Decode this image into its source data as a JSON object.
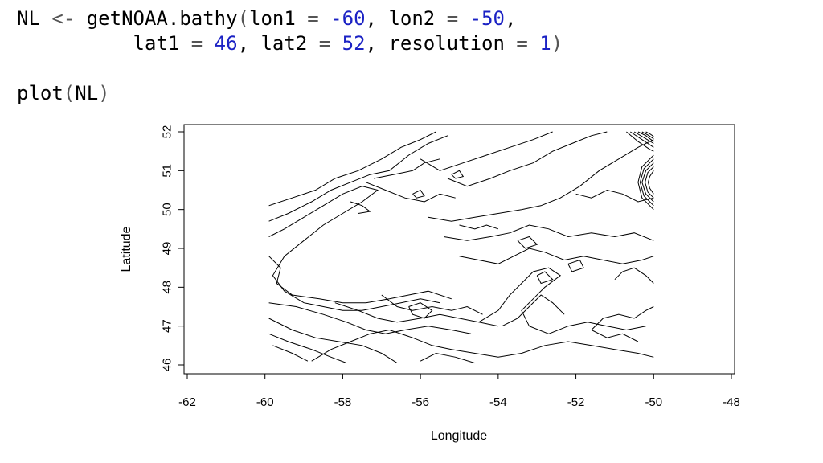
{
  "code": {
    "line1": {
      "var": "NL",
      "assign": "<-",
      "func": "getNOAA.bathy",
      "open": "(",
      "p1": "lon1",
      "eq1": "=",
      "v1": "-60",
      "c1": ",",
      "p2": "lon2",
      "eq2": "=",
      "v2": "-50",
      "c2": ","
    },
    "line2": {
      "p3": "lat1",
      "eq3": "=",
      "v3": "46",
      "c3": ",",
      "p4": "lat2",
      "eq4": "=",
      "v4": "52",
      "c4": ",",
      "p5": "resolution",
      "eq5": "=",
      "v5": "1",
      "close": ")"
    },
    "line3": {
      "func": "plot",
      "open": "(",
      "arg": "NL",
      "close": ")"
    }
  },
  "colors": {
    "code_number": "#1b22c4",
    "code_operator": "#555555",
    "contour": "#000000"
  },
  "chart_data": {
    "type": "contour",
    "xlabel": "Longitude",
    "ylabel": "Latitude",
    "xlim": [
      -62,
      -48
    ],
    "ylim": [
      46,
      52
    ],
    "xticks": [
      -62,
      -60,
      -58,
      -56,
      -54,
      -52,
      -50,
      -48
    ],
    "yticks": [
      46,
      47,
      48,
      49,
      50,
      51,
      52
    ],
    "data_extent": {
      "lon": [
        -60,
        -50
      ],
      "lat": [
        46,
        52
      ]
    },
    "grid": false,
    "legend": "none",
    "contours": [
      [
        [
          -59.9,
          49.3
        ],
        [
          -59.5,
          49.5
        ],
        [
          -59.0,
          49.8
        ],
        [
          -58.5,
          50.1
        ],
        [
          -58.0,
          50.4
        ],
        [
          -57.5,
          50.6
        ],
        [
          -57.1,
          50.5
        ],
        [
          -57.5,
          50.2
        ],
        [
          -58.0,
          49.9
        ],
        [
          -58.5,
          49.6
        ],
        [
          -59.0,
          49.2
        ],
        [
          -59.5,
          48.8
        ],
        [
          -59.8,
          48.3
        ],
        [
          -59.5,
          47.9
        ],
        [
          -59.0,
          47.6
        ],
        [
          -58.5,
          47.5
        ],
        [
          -58.0,
          47.4
        ],
        [
          -57.5,
          47.4
        ],
        [
          -57.0,
          47.5
        ],
        [
          -56.5,
          47.6
        ],
        [
          -56.0,
          47.7
        ],
        [
          -55.5,
          47.6
        ]
      ],
      [
        [
          -59.9,
          49.7
        ],
        [
          -59.4,
          49.9
        ],
        [
          -58.8,
          50.2
        ],
        [
          -58.3,
          50.5
        ],
        [
          -57.8,
          50.7
        ],
        [
          -57.3,
          50.9
        ],
        [
          -56.8,
          51.0
        ],
        [
          -56.3,
          51.4
        ],
        [
          -55.8,
          51.7
        ],
        [
          -55.3,
          51.9
        ]
      ],
      [
        [
          -59.9,
          50.1
        ],
        [
          -59.3,
          50.3
        ],
        [
          -58.7,
          50.5
        ],
        [
          -58.2,
          50.8
        ],
        [
          -57.6,
          51.0
        ],
        [
          -57.0,
          51.3
        ],
        [
          -56.5,
          51.6
        ],
        [
          -56.0,
          51.8
        ],
        [
          -55.6,
          52.0
        ]
      ],
      [
        [
          -59.9,
          48.8
        ],
        [
          -59.6,
          48.5
        ],
        [
          -59.7,
          48.1
        ],
        [
          -59.3,
          47.8
        ],
        [
          -58.6,
          47.7
        ],
        [
          -58.0,
          47.6
        ],
        [
          -57.4,
          47.6
        ],
        [
          -56.8,
          47.7
        ],
        [
          -56.3,
          47.8
        ],
        [
          -55.8,
          47.9
        ],
        [
          -55.2,
          47.7
        ]
      ],
      [
        [
          -59.9,
          47.2
        ],
        [
          -59.3,
          46.9
        ],
        [
          -58.7,
          46.7
        ],
        [
          -58.1,
          46.6
        ],
        [
          -57.5,
          46.5
        ],
        [
          -57.0,
          46.3
        ],
        [
          -56.6,
          46.05
        ]
      ],
      [
        [
          -59.9,
          46.8
        ],
        [
          -59.4,
          46.6
        ],
        [
          -58.8,
          46.4
        ],
        [
          -58.3,
          46.2
        ],
        [
          -57.9,
          46.05
        ]
      ],
      [
        [
          -59.8,
          46.5
        ],
        [
          -59.3,
          46.3
        ],
        [
          -58.9,
          46.1
        ]
      ],
      [
        [
          -59.9,
          47.6
        ],
        [
          -59.2,
          47.5
        ],
        [
          -58.5,
          47.3
        ],
        [
          -57.9,
          47.1
        ],
        [
          -57.4,
          46.9
        ],
        [
          -56.9,
          46.8
        ],
        [
          -56.4,
          46.9
        ],
        [
          -55.8,
          47.0
        ],
        [
          -55.2,
          46.9
        ],
        [
          -54.7,
          46.8
        ]
      ],
      [
        [
          -58.2,
          47.6
        ],
        [
          -57.6,
          47.4
        ],
        [
          -57.1,
          47.2
        ],
        [
          -56.6,
          47.1
        ],
        [
          -56.0,
          47.2
        ],
        [
          -55.5,
          47.3
        ],
        [
          -55.0,
          47.2
        ],
        [
          -54.5,
          47.1
        ],
        [
          -54.0,
          47.0
        ]
      ],
      [
        [
          -57.0,
          47.8
        ],
        [
          -56.6,
          47.5
        ],
        [
          -56.2,
          47.4
        ],
        [
          -55.7,
          47.5
        ],
        [
          -55.2,
          47.4
        ],
        [
          -54.8,
          47.5
        ],
        [
          -54.4,
          47.3
        ]
      ],
      [
        [
          -58.8,
          46.1
        ],
        [
          -58.3,
          46.4
        ],
        [
          -57.8,
          46.6
        ],
        [
          -57.3,
          46.8
        ],
        [
          -56.8,
          46.9
        ],
        [
          -56.2,
          46.7
        ],
        [
          -55.7,
          46.5
        ],
        [
          -55.2,
          46.4
        ],
        [
          -54.6,
          46.3
        ],
        [
          -54.0,
          46.2
        ],
        [
          -53.4,
          46.3
        ],
        [
          -52.8,
          46.5
        ],
        [
          -52.2,
          46.6
        ],
        [
          -51.6,
          46.5
        ],
        [
          -51.0,
          46.4
        ],
        [
          -50.4,
          46.3
        ],
        [
          -50.0,
          46.2
        ]
      ],
      [
        [
          -56.0,
          46.1
        ],
        [
          -55.6,
          46.3
        ],
        [
          -55.1,
          46.2
        ],
        [
          -54.6,
          46.05
        ]
      ],
      [
        [
          -54.5,
          47.1
        ],
        [
          -54.0,
          47.4
        ],
        [
          -53.7,
          47.8
        ],
        [
          -53.4,
          48.1
        ],
        [
          -53.1,
          48.4
        ],
        [
          -52.7,
          48.5
        ],
        [
          -52.4,
          48.3
        ],
        [
          -52.8,
          48.0
        ],
        [
          -53.1,
          47.7
        ],
        [
          -53.4,
          47.4
        ],
        [
          -53.2,
          47.0
        ],
        [
          -52.7,
          46.8
        ],
        [
          -52.2,
          47.0
        ],
        [
          -51.7,
          47.1
        ],
        [
          -51.2,
          47.0
        ],
        [
          -50.7,
          46.9
        ],
        [
          -50.2,
          47.0
        ]
      ],
      [
        [
          -53.9,
          47.0
        ],
        [
          -53.5,
          47.2
        ],
        [
          -53.2,
          47.5
        ],
        [
          -52.9,
          47.8
        ],
        [
          -52.6,
          47.6
        ],
        [
          -52.3,
          47.3
        ]
      ],
      [
        [
          -55.0,
          48.8
        ],
        [
          -54.5,
          48.7
        ],
        [
          -54.0,
          48.6
        ],
        [
          -53.6,
          48.8
        ],
        [
          -53.2,
          49.0
        ],
        [
          -52.8,
          48.9
        ],
        [
          -52.3,
          48.7
        ],
        [
          -51.8,
          48.8
        ],
        [
          -51.3,
          48.7
        ],
        [
          -50.8,
          48.6
        ],
        [
          -50.3,
          48.7
        ],
        [
          -50.0,
          48.8
        ]
      ],
      [
        [
          -55.4,
          49.3
        ],
        [
          -54.8,
          49.2
        ],
        [
          -54.2,
          49.3
        ],
        [
          -53.7,
          49.4
        ],
        [
          -53.2,
          49.6
        ],
        [
          -52.7,
          49.5
        ],
        [
          -52.2,
          49.3
        ],
        [
          -51.6,
          49.4
        ],
        [
          -51.0,
          49.3
        ],
        [
          -50.5,
          49.4
        ],
        [
          -50.0,
          49.2
        ]
      ],
      [
        [
          -55.8,
          49.8
        ],
        [
          -55.2,
          49.7
        ],
        [
          -54.6,
          49.8
        ],
        [
          -54.0,
          49.9
        ],
        [
          -53.4,
          50.0
        ],
        [
          -52.9,
          50.1
        ],
        [
          -52.4,
          50.3
        ],
        [
          -51.9,
          50.6
        ],
        [
          -51.4,
          51.0
        ],
        [
          -50.9,
          51.3
        ],
        [
          -50.4,
          51.6
        ],
        [
          -50.0,
          51.8
        ]
      ],
      [
        [
          -55.3,
          50.8
        ],
        [
          -54.8,
          50.6
        ],
        [
          -54.2,
          50.8
        ],
        [
          -53.7,
          51.0
        ],
        [
          -53.1,
          51.2
        ],
        [
          -52.6,
          51.5
        ],
        [
          -52.1,
          51.7
        ],
        [
          -51.6,
          51.9
        ],
        [
          -51.2,
          52.0
        ]
      ],
      [
        [
          -56.0,
          51.3
        ],
        [
          -55.5,
          51.0
        ],
        [
          -54.9,
          51.2
        ],
        [
          -54.3,
          51.4
        ],
        [
          -53.7,
          51.6
        ],
        [
          -53.1,
          51.8
        ],
        [
          -52.6,
          52.0
        ]
      ],
      [
        [
          -57.4,
          50.7
        ],
        [
          -56.9,
          50.5
        ],
        [
          -56.4,
          50.3
        ],
        [
          -55.9,
          50.2
        ],
        [
          -55.5,
          50.4
        ],
        [
          -55.1,
          50.3
        ]
      ],
      [
        [
          -57.2,
          50.8
        ],
        [
          -56.7,
          50.9
        ],
        [
          -56.2,
          51.0
        ],
        [
          -55.9,
          51.2
        ],
        [
          -55.5,
          51.3
        ]
      ],
      [
        [
          -55.0,
          49.6
        ],
        [
          -54.6,
          49.5
        ],
        [
          -54.3,
          49.6
        ],
        [
          -54.0,
          49.5
        ]
      ],
      [
        [
          -51.0,
          48.2
        ],
        [
          -50.8,
          48.4
        ],
        [
          -50.5,
          48.5
        ],
        [
          -50.2,
          48.3
        ],
        [
          -50.0,
          48.1
        ]
      ],
      [
        [
          -50.4,
          46.6
        ],
        [
          -50.8,
          46.8
        ],
        [
          -51.2,
          46.7
        ],
        [
          -51.6,
          46.9
        ],
        [
          -51.3,
          47.2
        ],
        [
          -50.9,
          47.3
        ],
        [
          -50.5,
          47.2
        ],
        [
          -50.2,
          47.4
        ],
        [
          -50.0,
          47.5
        ]
      ],
      [
        [
          -52.0,
          50.4
        ],
        [
          -51.6,
          50.3
        ],
        [
          -51.2,
          50.5
        ],
        [
          -50.8,
          50.4
        ],
        [
          -50.4,
          50.2
        ],
        [
          -50.0,
          50.3
        ]
      ],
      [
        [
          -50.0,
          51.4
        ],
        [
          -50.3,
          51.1
        ],
        [
          -50.4,
          50.7
        ],
        [
          -50.3,
          50.3
        ],
        [
          -50.0,
          50.0
        ]
      ],
      [
        [
          -50.0,
          51.3
        ],
        [
          -50.25,
          51.05
        ],
        [
          -50.35,
          50.7
        ],
        [
          -50.25,
          50.35
        ],
        [
          -50.0,
          50.1
        ]
      ],
      [
        [
          -50.0,
          51.2
        ],
        [
          -50.2,
          51.0
        ],
        [
          -50.3,
          50.7
        ],
        [
          -50.2,
          50.4
        ],
        [
          -50.0,
          50.2
        ]
      ],
      [
        [
          -50.0,
          51.1
        ],
        [
          -50.15,
          50.95
        ],
        [
          -50.22,
          50.7
        ],
        [
          -50.15,
          50.45
        ],
        [
          -50.0,
          50.3
        ]
      ],
      [
        [
          -50.0,
          51.0
        ],
        [
          -50.1,
          50.85
        ],
        [
          -50.14,
          50.7
        ],
        [
          -50.1,
          50.55
        ],
        [
          -50.0,
          50.4
        ]
      ],
      [
        [
          -50.6,
          52.0
        ],
        [
          -50.3,
          51.8
        ],
        [
          -50.0,
          51.6
        ]
      ],
      [
        [
          -50.5,
          52.0
        ],
        [
          -50.25,
          51.85
        ],
        [
          -50.0,
          51.7
        ]
      ],
      [
        [
          -50.4,
          52.0
        ],
        [
          -50.2,
          51.9
        ],
        [
          -50.0,
          51.75
        ]
      ],
      [
        [
          -50.3,
          52.0
        ],
        [
          -50.15,
          51.92
        ],
        [
          -50.0,
          51.82
        ]
      ],
      [
        [
          -50.2,
          52.0
        ],
        [
          -50.1,
          51.95
        ],
        [
          -50.0,
          51.88
        ]
      ],
      [
        [
          -50.7,
          52.0
        ],
        [
          -50.4,
          51.75
        ],
        [
          -50.1,
          51.55
        ],
        [
          -50.0,
          51.5
        ]
      ],
      [
        [
          -56.3,
          47.5
        ],
        [
          -56.0,
          47.6
        ],
        [
          -55.7,
          47.4
        ],
        [
          -55.9,
          47.2
        ],
        [
          -56.2,
          47.3
        ],
        [
          -56.3,
          47.5
        ]
      ],
      [
        [
          -53.5,
          49.2
        ],
        [
          -53.2,
          49.3
        ],
        [
          -53.0,
          49.1
        ],
        [
          -53.3,
          49.0
        ],
        [
          -53.5,
          49.2
        ]
      ],
      [
        [
          -57.8,
          50.2
        ],
        [
          -57.5,
          50.1
        ],
        [
          -57.3,
          49.95
        ],
        [
          -57.6,
          49.9
        ]
      ],
      [
        [
          -56.2,
          50.4
        ],
        [
          -56.0,
          50.5
        ],
        [
          -55.9,
          50.35
        ],
        [
          -56.1,
          50.3
        ],
        [
          -56.2,
          50.4
        ]
      ],
      [
        [
          -55.2,
          50.9
        ],
        [
          -55.0,
          51.0
        ],
        [
          -54.9,
          50.85
        ],
        [
          -55.1,
          50.8
        ],
        [
          -55.2,
          50.9
        ]
      ],
      [
        [
          -53.0,
          48.3
        ],
        [
          -52.8,
          48.4
        ],
        [
          -52.6,
          48.2
        ],
        [
          -52.9,
          48.1
        ],
        [
          -53.0,
          48.3
        ]
      ],
      [
        [
          -52.2,
          48.6
        ],
        [
          -51.9,
          48.7
        ],
        [
          -51.8,
          48.5
        ],
        [
          -52.1,
          48.4
        ],
        [
          -52.2,
          48.6
        ]
      ]
    ]
  }
}
